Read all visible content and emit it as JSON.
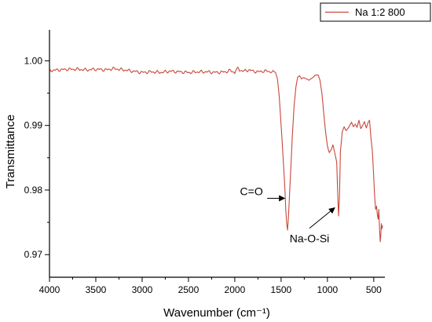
{
  "chart_data": {
    "type": "line",
    "title": "",
    "xlabel": "Wavenumber (cm⁻¹)",
    "ylabel": "Transmittance",
    "xlim": [
      4000,
      380
    ],
    "ylim": [
      0.9665,
      1.0048
    ],
    "x_reversed": true,
    "grid": false,
    "legend_position": "top-right",
    "x_ticks": [
      4000,
      3500,
      3000,
      2500,
      2000,
      1500,
      1000,
      500
    ],
    "x_tick_labels": [
      "4000",
      "3500",
      "3000",
      "2500",
      "2000",
      "1500",
      "1000",
      "500"
    ],
    "y_ticks": [
      0.97,
      0.98,
      0.99,
      1.0
    ],
    "y_tick_labels": [
      "0.97",
      "0.98",
      "0.99",
      "1.00"
    ],
    "series": [
      {
        "name": "Na 1:2 800",
        "color": "#c8473a",
        "points": [
          [
            4000,
            0.9985
          ],
          [
            3900,
            0.9986
          ],
          [
            3800,
            0.9987
          ],
          [
            3700,
            0.9987
          ],
          [
            3600,
            0.9986
          ],
          [
            3500,
            0.9987
          ],
          [
            3400,
            0.9986
          ],
          [
            3300,
            0.9988
          ],
          [
            3200,
            0.9986
          ],
          [
            3100,
            0.9984
          ],
          [
            3000,
            0.9982
          ],
          [
            2900,
            0.9983
          ],
          [
            2800,
            0.9982
          ],
          [
            2700,
            0.9984
          ],
          [
            2600,
            0.9983
          ],
          [
            2500,
            0.9982
          ],
          [
            2400,
            0.9983
          ],
          [
            2300,
            0.9983
          ],
          [
            2200,
            0.9982
          ],
          [
            2100,
            0.9983
          ],
          [
            2050,
            0.9985
          ],
          [
            2000,
            0.9982
          ],
          [
            1970,
            0.9992
          ],
          [
            1950,
            0.9986
          ],
          [
            1900,
            0.9984
          ],
          [
            1850,
            0.9986
          ],
          [
            1800,
            0.9984
          ],
          [
            1750,
            0.9983
          ],
          [
            1700,
            0.9984
          ],
          [
            1650,
            0.9984
          ],
          [
            1600,
            0.9983
          ],
          [
            1560,
            0.9982
          ],
          [
            1540,
            0.9972
          ],
          [
            1520,
            0.9945
          ],
          [
            1500,
            0.99
          ],
          [
            1480,
            0.9855
          ],
          [
            1460,
            0.9805
          ],
          [
            1450,
            0.977
          ],
          [
            1440,
            0.9748
          ],
          [
            1430,
            0.9738
          ],
          [
            1420,
            0.976
          ],
          [
            1400,
            0.982
          ],
          [
            1380,
            0.988
          ],
          [
            1360,
            0.993
          ],
          [
            1340,
            0.996
          ],
          [
            1320,
            0.9975
          ],
          [
            1300,
            0.9977
          ],
          [
            1280,
            0.9972
          ],
          [
            1260,
            0.9974
          ],
          [
            1240,
            0.9973
          ],
          [
            1200,
            0.997
          ],
          [
            1160,
            0.9974
          ],
          [
            1130,
            0.9978
          ],
          [
            1100,
            0.9978
          ],
          [
            1080,
            0.997
          ],
          [
            1060,
            0.995
          ],
          [
            1040,
            0.992
          ],
          [
            1020,
            0.989
          ],
          [
            1000,
            0.9868
          ],
          [
            980,
            0.9858
          ],
          [
            960,
            0.9862
          ],
          [
            940,
            0.987
          ],
          [
            920,
            0.9857
          ],
          [
            900,
            0.9843
          ],
          [
            890,
            0.98
          ],
          [
            880,
            0.976
          ],
          [
            870,
            0.979
          ],
          [
            860,
            0.986
          ],
          [
            840,
            0.989
          ],
          [
            820,
            0.9898
          ],
          [
            800,
            0.9892
          ],
          [
            780,
            0.9895
          ],
          [
            760,
            0.99
          ],
          [
            740,
            0.9905
          ],
          [
            720,
            0.9898
          ],
          [
            700,
            0.9902
          ],
          [
            680,
            0.9897
          ],
          [
            660,
            0.9908
          ],
          [
            640,
            0.9895
          ],
          [
            620,
            0.99
          ],
          [
            600,
            0.9906
          ],
          [
            580,
            0.9896
          ],
          [
            560,
            0.9905
          ],
          [
            545,
            0.9908
          ],
          [
            530,
            0.988
          ],
          [
            515,
            0.986
          ],
          [
            500,
            0.982
          ],
          [
            490,
            0.979
          ],
          [
            480,
            0.977
          ],
          [
            470,
            0.9775
          ],
          [
            460,
            0.976
          ],
          [
            452,
            0.9755
          ],
          [
            445,
            0.977
          ],
          [
            438,
            0.974
          ],
          [
            430,
            0.972
          ],
          [
            424,
            0.973
          ],
          [
            418,
            0.9748
          ],
          [
            412,
            0.974
          ],
          [
            405,
            0.9745
          ]
        ]
      }
    ],
    "annotations": [
      {
        "text": "C=O",
        "target_x": 1430,
        "target_y": 0.9803
      },
      {
        "text": "Na-O-Si",
        "target_x": 880,
        "target_y": 0.977
      }
    ]
  }
}
